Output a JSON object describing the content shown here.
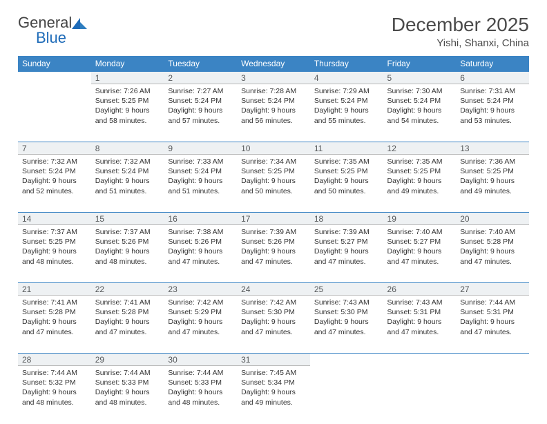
{
  "logo": {
    "text1": "General",
    "text2": "Blue"
  },
  "title": "December 2025",
  "subtitle": "Yishi, Shanxi, China",
  "colors": {
    "header_bg": "#3b84c4",
    "header_fg": "#ffffff",
    "daynum_bg": "#eef1f3",
    "daynum_border_top": "#3b84c4",
    "daynum_border_bottom": "#b9b9b9"
  },
  "weekdays": [
    "Sunday",
    "Monday",
    "Tuesday",
    "Wednesday",
    "Thursday",
    "Friday",
    "Saturday"
  ],
  "weeks": [
    [
      null,
      {
        "n": "1",
        "sr": "7:26 AM",
        "ss": "5:25 PM",
        "dl": "9 hours and 58 minutes."
      },
      {
        "n": "2",
        "sr": "7:27 AM",
        "ss": "5:24 PM",
        "dl": "9 hours and 57 minutes."
      },
      {
        "n": "3",
        "sr": "7:28 AM",
        "ss": "5:24 PM",
        "dl": "9 hours and 56 minutes."
      },
      {
        "n": "4",
        "sr": "7:29 AM",
        "ss": "5:24 PM",
        "dl": "9 hours and 55 minutes."
      },
      {
        "n": "5",
        "sr": "7:30 AM",
        "ss": "5:24 PM",
        "dl": "9 hours and 54 minutes."
      },
      {
        "n": "6",
        "sr": "7:31 AM",
        "ss": "5:24 PM",
        "dl": "9 hours and 53 minutes."
      }
    ],
    [
      {
        "n": "7",
        "sr": "7:32 AM",
        "ss": "5:24 PM",
        "dl": "9 hours and 52 minutes."
      },
      {
        "n": "8",
        "sr": "7:32 AM",
        "ss": "5:24 PM",
        "dl": "9 hours and 51 minutes."
      },
      {
        "n": "9",
        "sr": "7:33 AM",
        "ss": "5:24 PM",
        "dl": "9 hours and 51 minutes."
      },
      {
        "n": "10",
        "sr": "7:34 AM",
        "ss": "5:25 PM",
        "dl": "9 hours and 50 minutes."
      },
      {
        "n": "11",
        "sr": "7:35 AM",
        "ss": "5:25 PM",
        "dl": "9 hours and 50 minutes."
      },
      {
        "n": "12",
        "sr": "7:35 AM",
        "ss": "5:25 PM",
        "dl": "9 hours and 49 minutes."
      },
      {
        "n": "13",
        "sr": "7:36 AM",
        "ss": "5:25 PM",
        "dl": "9 hours and 49 minutes."
      }
    ],
    [
      {
        "n": "14",
        "sr": "7:37 AM",
        "ss": "5:25 PM",
        "dl": "9 hours and 48 minutes."
      },
      {
        "n": "15",
        "sr": "7:37 AM",
        "ss": "5:26 PM",
        "dl": "9 hours and 48 minutes."
      },
      {
        "n": "16",
        "sr": "7:38 AM",
        "ss": "5:26 PM",
        "dl": "9 hours and 47 minutes."
      },
      {
        "n": "17",
        "sr": "7:39 AM",
        "ss": "5:26 PM",
        "dl": "9 hours and 47 minutes."
      },
      {
        "n": "18",
        "sr": "7:39 AM",
        "ss": "5:27 PM",
        "dl": "9 hours and 47 minutes."
      },
      {
        "n": "19",
        "sr": "7:40 AM",
        "ss": "5:27 PM",
        "dl": "9 hours and 47 minutes."
      },
      {
        "n": "20",
        "sr": "7:40 AM",
        "ss": "5:28 PM",
        "dl": "9 hours and 47 minutes."
      }
    ],
    [
      {
        "n": "21",
        "sr": "7:41 AM",
        "ss": "5:28 PM",
        "dl": "9 hours and 47 minutes."
      },
      {
        "n": "22",
        "sr": "7:41 AM",
        "ss": "5:28 PM",
        "dl": "9 hours and 47 minutes."
      },
      {
        "n": "23",
        "sr": "7:42 AM",
        "ss": "5:29 PM",
        "dl": "9 hours and 47 minutes."
      },
      {
        "n": "24",
        "sr": "7:42 AM",
        "ss": "5:30 PM",
        "dl": "9 hours and 47 minutes."
      },
      {
        "n": "25",
        "sr": "7:43 AM",
        "ss": "5:30 PM",
        "dl": "9 hours and 47 minutes."
      },
      {
        "n": "26",
        "sr": "7:43 AM",
        "ss": "5:31 PM",
        "dl": "9 hours and 47 minutes."
      },
      {
        "n": "27",
        "sr": "7:44 AM",
        "ss": "5:31 PM",
        "dl": "9 hours and 47 minutes."
      }
    ],
    [
      {
        "n": "28",
        "sr": "7:44 AM",
        "ss": "5:32 PM",
        "dl": "9 hours and 48 minutes."
      },
      {
        "n": "29",
        "sr": "7:44 AM",
        "ss": "5:33 PM",
        "dl": "9 hours and 48 minutes."
      },
      {
        "n": "30",
        "sr": "7:44 AM",
        "ss": "5:33 PM",
        "dl": "9 hours and 48 minutes."
      },
      {
        "n": "31",
        "sr": "7:45 AM",
        "ss": "5:34 PM",
        "dl": "9 hours and 49 minutes."
      },
      null,
      null,
      null
    ]
  ],
  "labels": {
    "sunrise": "Sunrise: ",
    "sunset": "Sunset: ",
    "daylight": "Daylight: "
  }
}
